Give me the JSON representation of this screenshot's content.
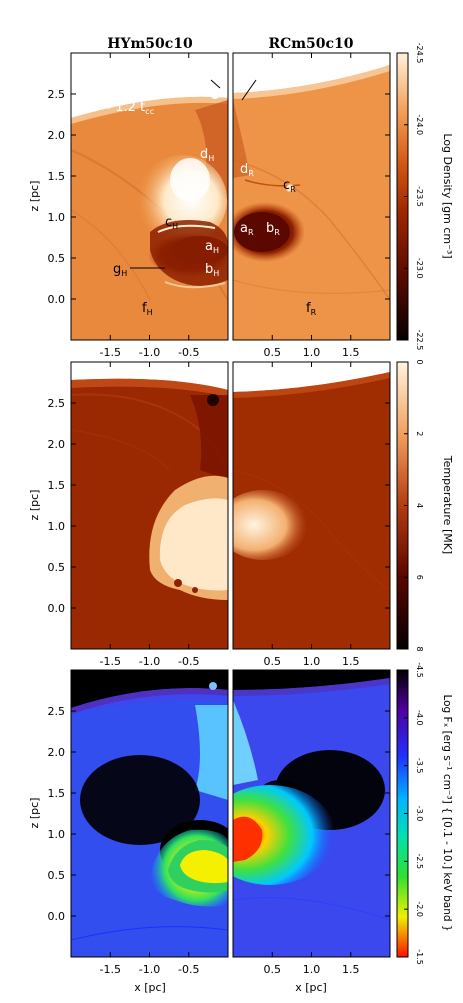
{
  "titles": {
    "left": "HYm50c10",
    "right": "RCm50c10"
  },
  "time_label": "t = 1.2 t",
  "time_sub": "cc",
  "ylabel": "z [pc]",
  "xlabel": "x [pc]",
  "x_ticks_left": [
    "-1.5",
    "-1.0",
    "-0.5"
  ],
  "x_ticks_right": [
    "0.5",
    "1.0",
    "1.5"
  ],
  "y_ticks": [
    "0.0",
    "0.5",
    "1.0",
    "1.5",
    "2.0",
    "2.5"
  ],
  "colorbars": [
    {
      "label": "Log Density [gm cm⁻³]",
      "ticks": [
        "-24.5",
        "-24.0",
        "-23.5",
        "-23.0",
        "-22.5"
      ]
    },
    {
      "label": "Temperature [MK]",
      "ticks": [
        "0",
        "2",
        "4",
        "6",
        "8"
      ]
    },
    {
      "label": "Log Fₓ [erg s⁻¹ cm⁻³] { [0.1 - 10.] keV band }",
      "ticks": [
        "-4.5",
        "-4.0",
        "-3.5",
        "-3.0",
        "-2.5",
        "-2.0",
        "-1.5"
      ]
    }
  ],
  "annotations_left": [
    {
      "base": "e",
      "sub": "H"
    },
    {
      "base": "d",
      "sub": "H"
    },
    {
      "base": "c",
      "sub": "H"
    },
    {
      "base": "a",
      "sub": "H"
    },
    {
      "base": "g",
      "sub": "H"
    },
    {
      "base": "b",
      "sub": "H"
    },
    {
      "base": "f",
      "sub": "H"
    }
  ],
  "annotations_right": [
    {
      "base": "e",
      "sub": "R"
    },
    {
      "base": "d",
      "sub": "R"
    },
    {
      "base": "c",
      "sub": "R"
    },
    {
      "base": "a",
      "sub": "R"
    },
    {
      "base": "b",
      "sub": "R"
    },
    {
      "base": "f",
      "sub": "R"
    }
  ],
  "chart_data": [
    {
      "type": "heatmap",
      "quantity": "Log Density [gm cm⁻³]",
      "colorbar_range": [
        -24.5,
        -22.5
      ],
      "xlim": [
        -2.0,
        0.0
      ],
      "ylim": [
        -0.5,
        3.0
      ],
      "panel": "HYm50c10"
    },
    {
      "type": "heatmap",
      "quantity": "Log Density [gm cm⁻³]",
      "colorbar_range": [
        -24.5,
        -22.5
      ],
      "xlim": [
        0.0,
        2.0
      ],
      "ylim": [
        -0.5,
        3.0
      ],
      "panel": "RCm50c10"
    },
    {
      "type": "heatmap",
      "quantity": "Temperature [MK]",
      "colorbar_range": [
        0,
        8
      ],
      "xlim": [
        -2.0,
        0.0
      ],
      "ylim": [
        -0.5,
        3.0
      ],
      "panel": "HYm50c10"
    },
    {
      "type": "heatmap",
      "quantity": "Temperature [MK]",
      "colorbar_range": [
        0,
        8
      ],
      "xlim": [
        0.0,
        2.0
      ],
      "ylim": [
        -0.5,
        3.0
      ],
      "panel": "RCm50c10"
    },
    {
      "type": "heatmap",
      "quantity": "Log Fₓ",
      "colorbar_range": [
        -4.5,
        -1.5
      ],
      "xlim": [
        -2.0,
        0.0
      ],
      "ylim": [
        -0.5,
        3.0
      ],
      "panel": "HYm50c10"
    },
    {
      "type": "heatmap",
      "quantity": "Log Fₓ",
      "colorbar_range": [
        -4.5,
        -1.5
      ],
      "xlim": [
        0.0,
        2.0
      ],
      "ylim": [
        -0.5,
        3.0
      ],
      "panel": "RCm50c10"
    }
  ]
}
